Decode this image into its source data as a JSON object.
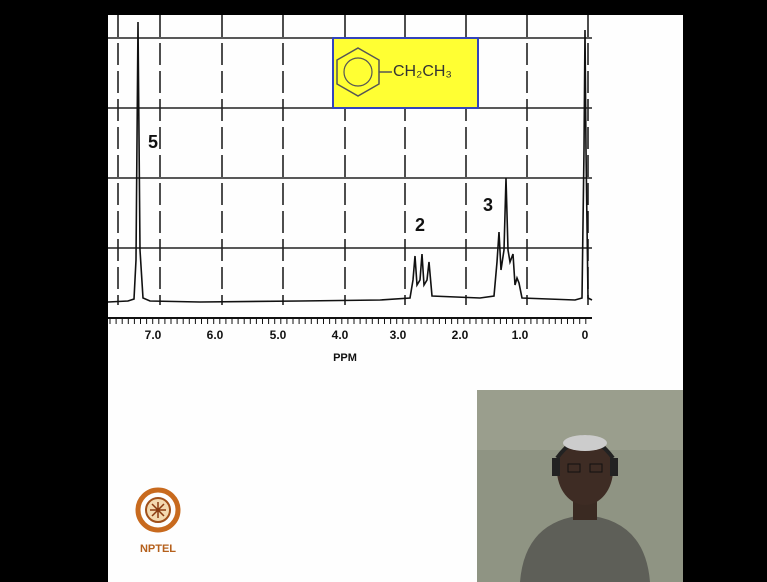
{
  "slide": {
    "molecule": {
      "substituent": "CH₂CH₃"
    },
    "peak_labels": [
      "5",
      "2",
      "3"
    ],
    "x_ticks": [
      "7.0",
      "6.0",
      "5.0",
      "4.0",
      "3.0",
      "2.0",
      "1.0",
      "0"
    ],
    "x_label": "PPM",
    "logo": "NPTEL"
  }
}
